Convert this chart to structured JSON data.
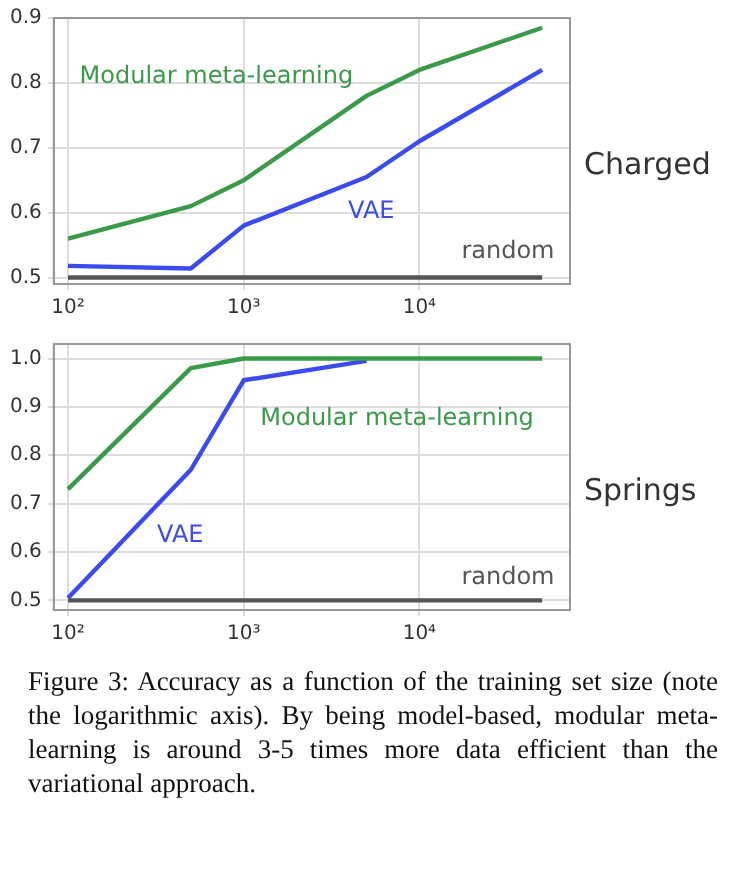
{
  "chart_data": [
    {
      "type": "line",
      "title": "Charged",
      "x": [
        100,
        500,
        1000,
        5000,
        10000,
        50000
      ],
      "series": [
        {
          "name": "Modular meta-learning",
          "color": "#3a9a4a",
          "values": [
            0.56,
            0.61,
            0.65,
            0.78,
            0.82,
            0.885
          ]
        },
        {
          "name": "VAE",
          "color": "#3a4cf0",
          "values": [
            0.518,
            0.514,
            0.58,
            0.655,
            0.71,
            0.82
          ]
        },
        {
          "name": "random",
          "color": "#555555",
          "values": [
            0.5,
            0.5,
            0.5,
            0.5,
            0.5,
            0.5
          ]
        }
      ],
      "log": "x",
      "xlim": [
        83,
        72000
      ],
      "xticks": [
        {
          "value": 100,
          "label": "10²"
        },
        {
          "value": 1000,
          "label": "10³"
        },
        {
          "value": 10000,
          "label": "10⁴"
        }
      ],
      "ylim": [
        0.49,
        0.9
      ],
      "yticks": [
        0.5,
        0.6,
        0.7,
        0.8,
        0.9
      ],
      "grid": true,
      "legend": false,
      "marker": "none",
      "line_style": "solid"
    },
    {
      "type": "line",
      "title": "Springs",
      "x": [
        100,
        500,
        1000,
        5000,
        10000,
        50000
      ],
      "series": [
        {
          "name": "Modular meta-learning",
          "color": "#3a9a4a",
          "values": [
            0.73,
            0.98,
            1.0,
            1.0,
            1.0,
            1.0
          ]
        },
        {
          "name": "VAE",
          "color": "#3a4cf0",
          "values": [
            0.505,
            0.77,
            0.955,
            0.995,
            null,
            null
          ]
        },
        {
          "name": "random",
          "color": "#555555",
          "values": [
            0.5,
            0.5,
            0.5,
            0.5,
            0.5,
            0.5
          ]
        }
      ],
      "log": "x",
      "xlim": [
        83,
        72000
      ],
      "xticks": [
        {
          "value": 100,
          "label": "10²"
        },
        {
          "value": 1000,
          "label": "10³"
        },
        {
          "value": 10000,
          "label": "10⁴"
        }
      ],
      "ylim": [
        0.48,
        1.03
      ],
      "yticks": [
        {
          "value": 0.5,
          "label": "0.5"
        },
        {
          "value": 0.6,
          "label": "0.6"
        },
        {
          "value": 0.7,
          "label": "0.7"
        },
        {
          "value": 0.8,
          "label": "0.8"
        },
        {
          "value": 0.9,
          "label": "0.9"
        },
        {
          "value": 1.0,
          "label": "1.0"
        }
      ],
      "grid": true,
      "legend": false,
      "marker": "none",
      "line_style": "solid",
      "annotations": [
        "Figure 3: Accuracy as a function of the training set size (note the logarithmic axis). By being model-based, modular meta-learning is around 3-5 times more data efficient than the variational approach."
      ]
    }
  ]
}
